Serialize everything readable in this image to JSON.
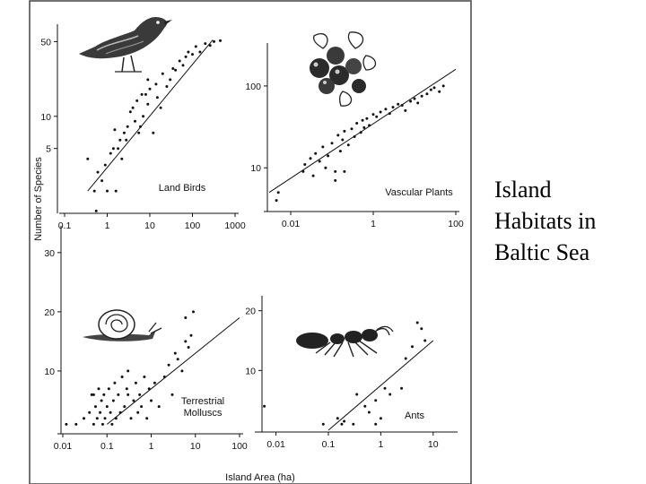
{
  "caption": [
    "Island",
    "Habitats in",
    "Baltic Sea"
  ],
  "shared_labels": {
    "ylabel": "Number of Species",
    "xlabel": "Island Area (ha)"
  },
  "colors": {
    "ink": "#111111",
    "frame": "#444444",
    "background": "#ffffff"
  },
  "chart_data": [
    {
      "type": "scatter",
      "title": "Land Birds",
      "icon": "bird-icon",
      "x_scale": "log",
      "y_scale": "log",
      "x_ticks": [
        0.1,
        1,
        10,
        100,
        1000
      ],
      "x_tick_labels": [
        "0.1",
        "1",
        "10",
        "100",
        "1000"
      ],
      "y_ticks": [
        5,
        10,
        50
      ],
      "y_tick_labels": [
        "5",
        "10",
        "50"
      ],
      "xlim": [
        0.1,
        1000
      ],
      "ylim": [
        1.5,
        60
      ],
      "points": [
        [
          0.35,
          4
        ],
        [
          0.5,
          2
        ],
        [
          0.55,
          1.3
        ],
        [
          0.6,
          3
        ],
        [
          0.75,
          2.5
        ],
        [
          1,
          2
        ],
        [
          1.2,
          4.5
        ],
        [
          1.4,
          5
        ],
        [
          1.6,
          2
        ],
        [
          1.8,
          5
        ],
        [
          2,
          6
        ],
        [
          2.5,
          7
        ],
        [
          3,
          8
        ],
        [
          2.8,
          6
        ],
        [
          3.5,
          11
        ],
        [
          4,
          12
        ],
        [
          4.5,
          9
        ],
        [
          5,
          14
        ],
        [
          5.5,
          7
        ],
        [
          6,
          8
        ],
        [
          7,
          10
        ],
        [
          8,
          16
        ],
        [
          9,
          13
        ],
        [
          10,
          18
        ],
        [
          12,
          7
        ],
        [
          14,
          20
        ],
        [
          15,
          15
        ],
        [
          18,
          12
        ],
        [
          20,
          25
        ],
        [
          25,
          19
        ],
        [
          30,
          22
        ],
        [
          35,
          28
        ],
        [
          40,
          27
        ],
        [
          50,
          33
        ],
        [
          60,
          30
        ],
        [
          70,
          36
        ],
        [
          80,
          40
        ],
        [
          100,
          38
        ],
        [
          120,
          45
        ],
        [
          150,
          40
        ],
        [
          200,
          48
        ],
        [
          260,
          46
        ],
        [
          320,
          50
        ],
        [
          450,
          51
        ],
        [
          0.9,
          3.5
        ],
        [
          2.2,
          4
        ],
        [
          6.5,
          16
        ],
        [
          9,
          22
        ],
        [
          1.5,
          7.5
        ]
      ],
      "fit": [
        [
          0.35,
          2
        ],
        [
          300,
          52
        ]
      ]
    },
    {
      "type": "scatter",
      "title": "Vascular Plants",
      "icon": "berry-branch-icon",
      "x_scale": "log",
      "y_scale": "log",
      "x_ticks": [
        0.01,
        1,
        100
      ],
      "x_tick_labels": [
        "0.01",
        "1",
        "100"
      ],
      "y_ticks": [
        10,
        100
      ],
      "y_tick_labels": [
        "10",
        "100"
      ],
      "xlim": [
        0.003,
        100
      ],
      "ylim": [
        3,
        260
      ],
      "points": [
        [
          0.0045,
          4
        ],
        [
          0.005,
          5
        ],
        [
          0.02,
          9
        ],
        [
          0.022,
          11
        ],
        [
          0.03,
          13
        ],
        [
          0.035,
          8
        ],
        [
          0.04,
          15
        ],
        [
          0.05,
          12
        ],
        [
          0.06,
          18
        ],
        [
          0.07,
          10
        ],
        [
          0.08,
          14
        ],
        [
          0.1,
          20
        ],
        [
          0.12,
          9
        ],
        [
          0.14,
          25
        ],
        [
          0.16,
          16
        ],
        [
          0.18,
          22
        ],
        [
          0.2,
          28
        ],
        [
          0.25,
          19
        ],
        [
          0.3,
          30
        ],
        [
          0.35,
          24
        ],
        [
          0.4,
          35
        ],
        [
          0.5,
          27
        ],
        [
          0.55,
          38
        ],
        [
          0.6,
          31
        ],
        [
          0.7,
          40
        ],
        [
          0.8,
          33
        ],
        [
          1,
          45
        ],
        [
          1.2,
          42
        ],
        [
          1.5,
          48
        ],
        [
          2,
          52
        ],
        [
          2.5,
          46
        ],
        [
          3,
          55
        ],
        [
          4,
          60
        ],
        [
          5,
          58
        ],
        [
          6,
          50
        ],
        [
          8,
          65
        ],
        [
          10,
          70
        ],
        [
          12,
          62
        ],
        [
          15,
          75
        ],
        [
          20,
          80
        ],
        [
          25,
          90
        ],
        [
          30,
          95
        ],
        [
          40,
          85
        ],
        [
          50,
          100
        ],
        [
          0.12,
          7
        ],
        [
          0.2,
          9
        ]
      ],
      "fit": [
        [
          0.003,
          5
        ],
        [
          100,
          160
        ]
      ]
    },
    {
      "type": "scatter",
      "title": "Terrestrial Molluscs",
      "icon": "snail-icon",
      "x_scale": "log",
      "y_scale": "linear",
      "x_ticks": [
        0.01,
        0.1,
        1,
        10,
        100
      ],
      "x_tick_labels": [
        "0.01",
        "0.1",
        "1",
        "10",
        "100"
      ],
      "y_ticks": [
        10,
        20,
        30
      ],
      "y_tick_labels": [
        "10",
        "20",
        "30"
      ],
      "xlim": [
        0.01,
        100
      ],
      "ylim": [
        0,
        33
      ],
      "points": [
        [
          0.012,
          1
        ],
        [
          0.02,
          1
        ],
        [
          0.03,
          2
        ],
        [
          0.04,
          3
        ],
        [
          0.045,
          6
        ],
        [
          0.05,
          1
        ],
        [
          0.055,
          4
        ],
        [
          0.06,
          2
        ],
        [
          0.065,
          7
        ],
        [
          0.07,
          3
        ],
        [
          0.075,
          5
        ],
        [
          0.08,
          1
        ],
        [
          0.085,
          6
        ],
        [
          0.09,
          2
        ],
        [
          0.1,
          4
        ],
        [
          0.11,
          7
        ],
        [
          0.12,
          3
        ],
        [
          0.13,
          1
        ],
        [
          0.14,
          5
        ],
        [
          0.15,
          8
        ],
        [
          0.16,
          2
        ],
        [
          0.18,
          6
        ],
        [
          0.2,
          3
        ],
        [
          0.22,
          9
        ],
        [
          0.25,
          4
        ],
        [
          0.28,
          7
        ],
        [
          0.3,
          10
        ],
        [
          0.35,
          2
        ],
        [
          0.4,
          5
        ],
        [
          0.45,
          8
        ],
        [
          0.5,
          3
        ],
        [
          0.55,
          6
        ],
        [
          0.6,
          4
        ],
        [
          0.7,
          9
        ],
        [
          0.8,
          2
        ],
        [
          0.9,
          7
        ],
        [
          1,
          5
        ],
        [
          1.2,
          8
        ],
        [
          1.5,
          4
        ],
        [
          2,
          9
        ],
        [
          2.5,
          11
        ],
        [
          3,
          6
        ],
        [
          3.5,
          13
        ],
        [
          4,
          12
        ],
        [
          5,
          10
        ],
        [
          6,
          15
        ],
        [
          7,
          14
        ],
        [
          8,
          16
        ],
        [
          9,
          20
        ],
        [
          6,
          19
        ],
        [
          0.05,
          6
        ],
        [
          0.3,
          6
        ]
      ],
      "fit": [
        [
          0.1,
          1
        ],
        [
          100,
          19
        ]
      ]
    },
    {
      "type": "scatter",
      "title": "Ants",
      "icon": "ant-icon",
      "x_scale": "log",
      "y_scale": "linear",
      "x_ticks": [
        0.01,
        0.1,
        1,
        10
      ],
      "x_tick_labels": [
        "0.01",
        "0.1",
        "1",
        "10"
      ],
      "y_ticks": [
        10,
        20
      ],
      "y_tick_labels": [
        "10",
        "20"
      ],
      "xlim": [
        0.005,
        25
      ],
      "ylim": [
        0,
        21
      ],
      "points": [
        [
          0.006,
          4
        ],
        [
          0.08,
          1
        ],
        [
          0.15,
          2
        ],
        [
          0.18,
          1
        ],
        [
          0.2,
          1.5
        ],
        [
          0.3,
          1
        ],
        [
          0.35,
          6
        ],
        [
          0.5,
          4
        ],
        [
          0.6,
          3
        ],
        [
          0.8,
          1
        ],
        [
          1,
          2
        ],
        [
          1.2,
          7
        ],
        [
          1.5,
          6
        ],
        [
          2.5,
          7
        ],
        [
          3,
          12
        ],
        [
          4,
          14
        ],
        [
          5,
          18
        ],
        [
          6,
          17
        ],
        [
          7,
          15
        ],
        [
          0.8,
          5
        ]
      ],
      "fit": [
        [
          0.1,
          0
        ],
        [
          10,
          15
        ]
      ]
    }
  ]
}
